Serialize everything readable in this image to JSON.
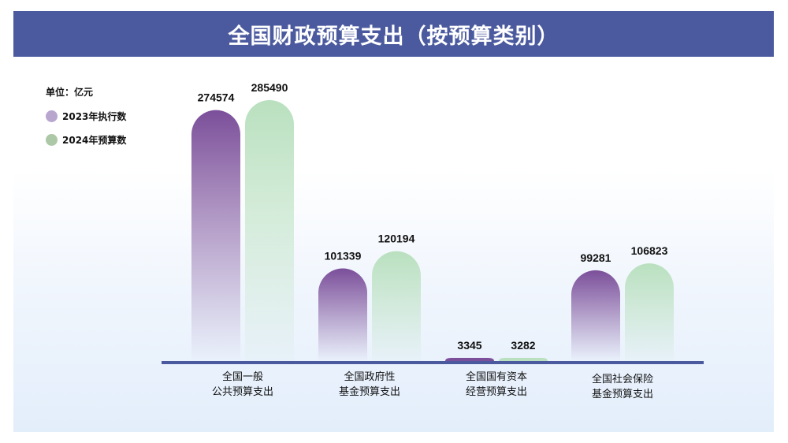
{
  "title": "全国财政预算支出（按预算类别）",
  "colors": {
    "title_bar": "#4b5a9e",
    "series_2023": "#7b4f9a",
    "series_2024": "#b9e0bf",
    "legend_2023": "#b8a6cf",
    "legend_2024": "#adc8a6",
    "axis": "#4b5a9e"
  },
  "chart_data": {
    "type": "bar",
    "title": "全国财政预算支出（按预算类别）",
    "unit": "单位：亿元",
    "categories": [
      "全国一般\n公共预算支出",
      "全国政府性\n基金预算支出",
      "全国国有资本\n经营预算支出",
      "全国社会保险\n基金预算支出"
    ],
    "series": [
      {
        "name": "2023年执行数",
        "values": [
          274574,
          101339,
          3345,
          99281
        ]
      },
      {
        "name": "2024年预算数",
        "values": [
          285490,
          120194,
          3282,
          106823
        ]
      }
    ],
    "ylim": [
      0,
      285490
    ],
    "grid": false,
    "legend_position": "top-left",
    "data_labels": true
  }
}
